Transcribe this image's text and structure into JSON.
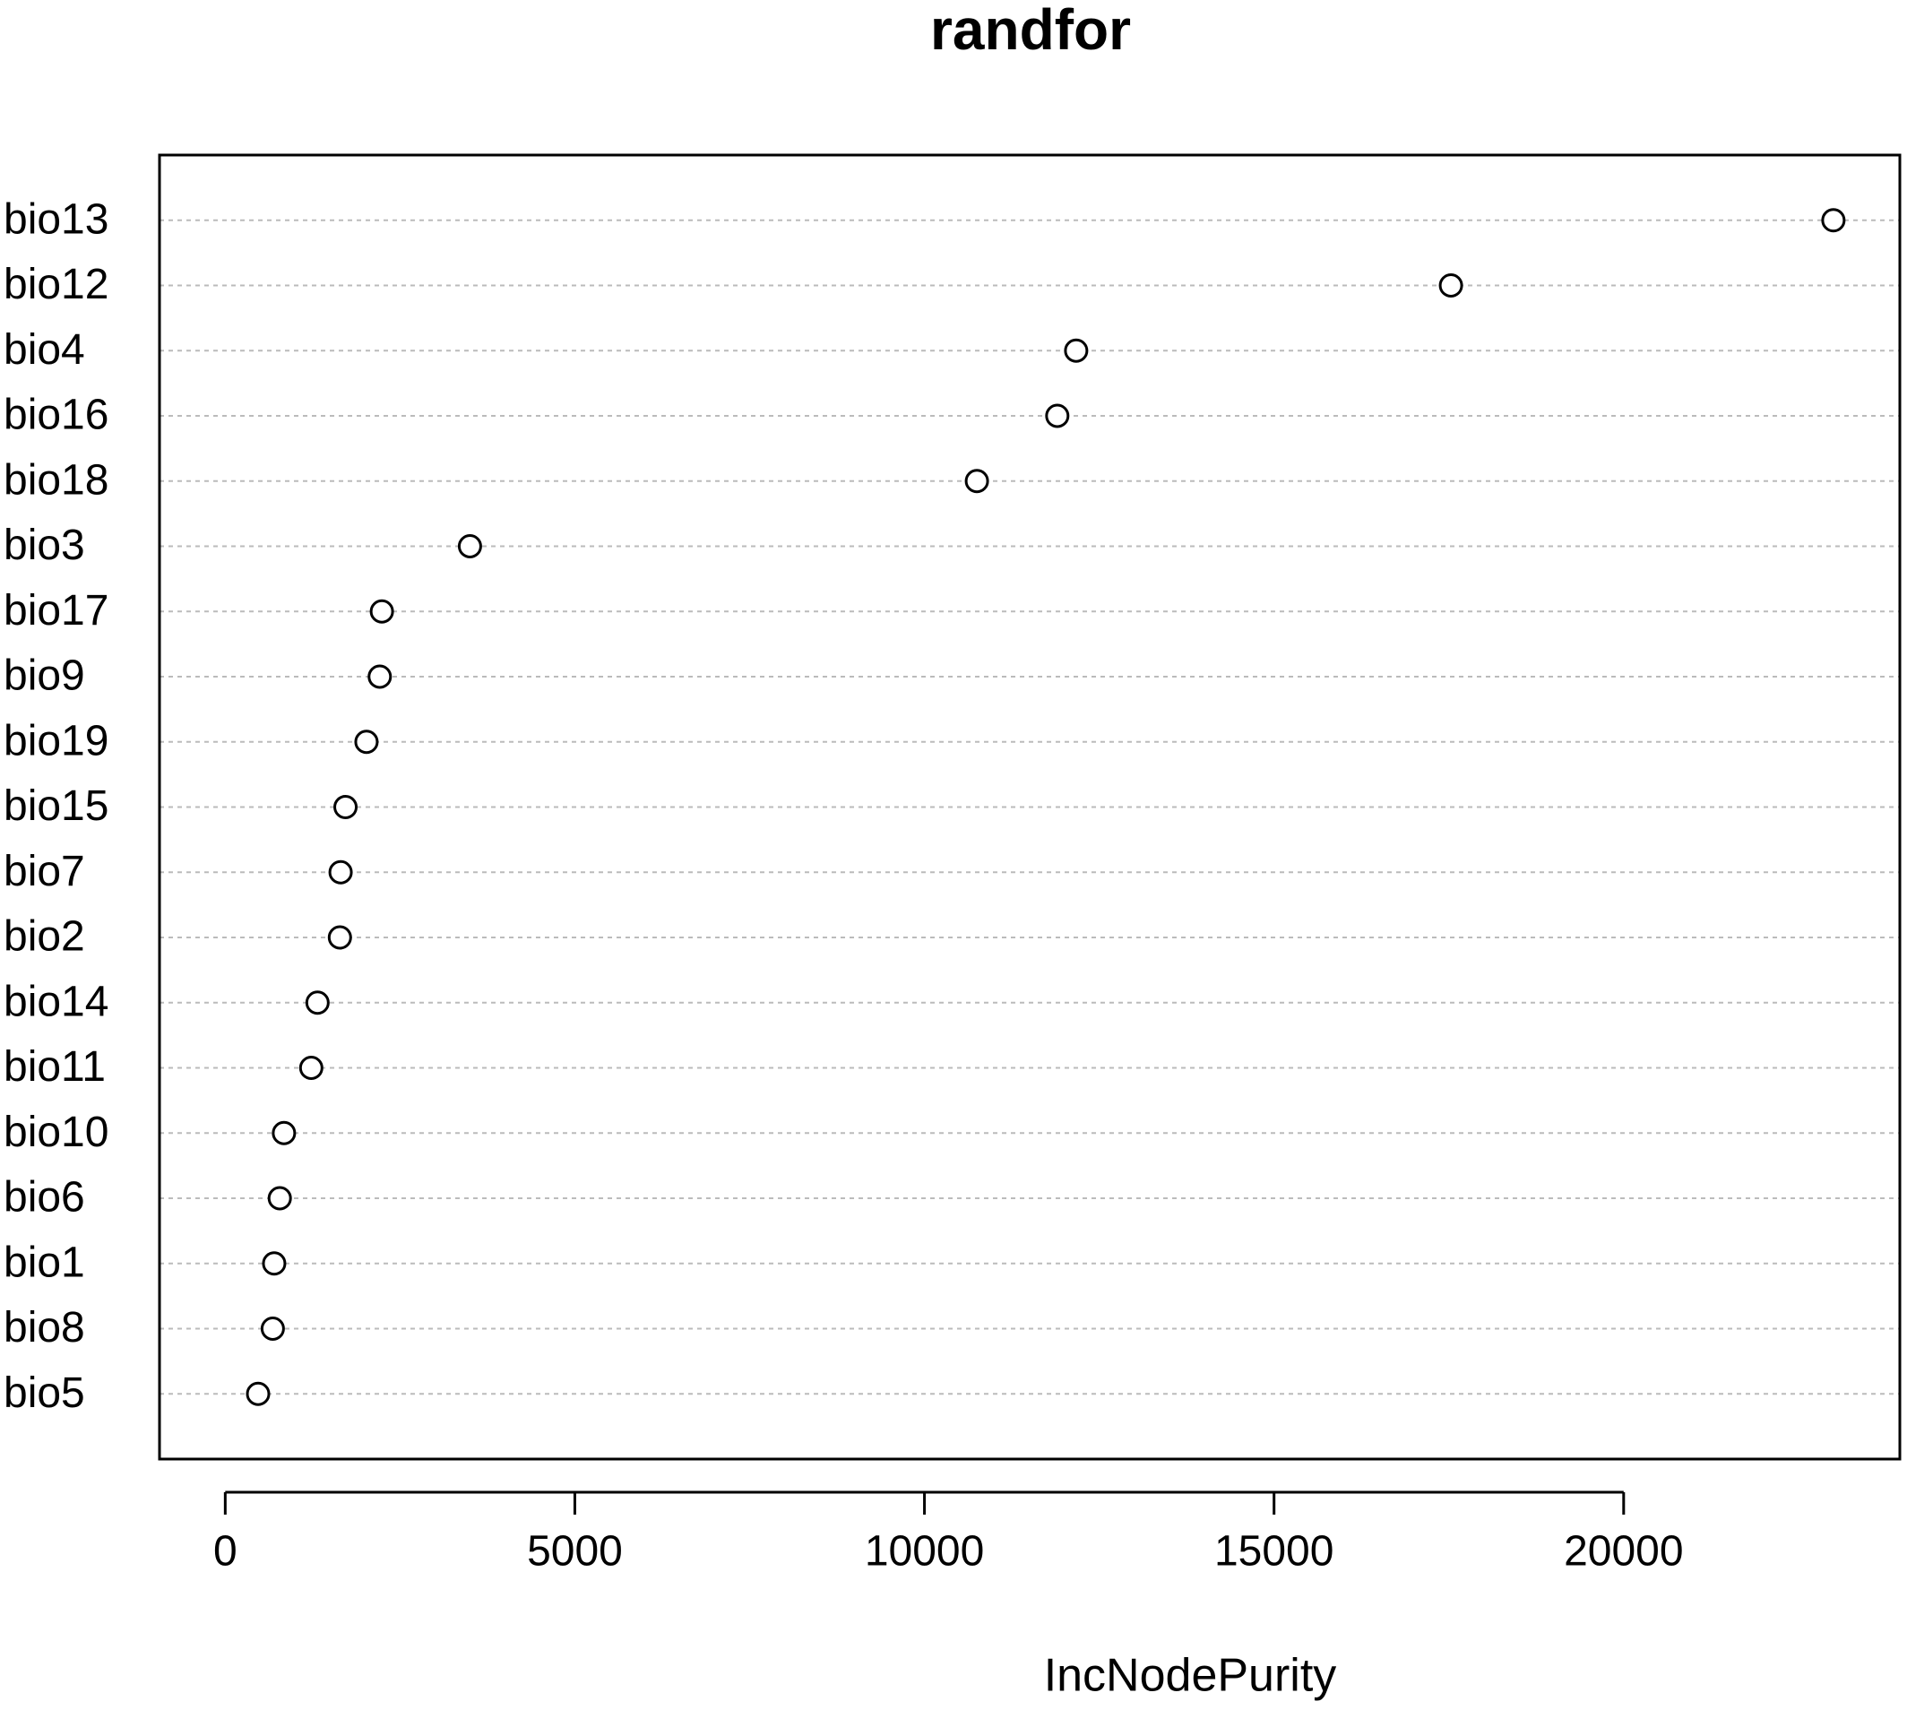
{
  "chart_data": {
    "type": "dot",
    "title": "randfor",
    "x_label": "IncNodePurity",
    "categories": [
      "bio13",
      "bio12",
      "bio4",
      "bio16",
      "bio18",
      "bio3",
      "bio17",
      "bio9",
      "bio19",
      "bio15",
      "bio7",
      "bio2",
      "bio14",
      "bio11",
      "bio10",
      "bio6",
      "bio1",
      "bio8",
      "bio5"
    ],
    "values": [
      23000,
      17530,
      12170,
      11900,
      10750,
      3500,
      2240,
      2210,
      2020,
      1720,
      1650,
      1640,
      1320,
      1230,
      840,
      780,
      700,
      680,
      470
    ],
    "color": "#000000",
    "xlim": [
      -940,
      23950
    ],
    "xticks": [
      0,
      5000,
      10000,
      15000,
      20000
    ],
    "grid": true
  }
}
